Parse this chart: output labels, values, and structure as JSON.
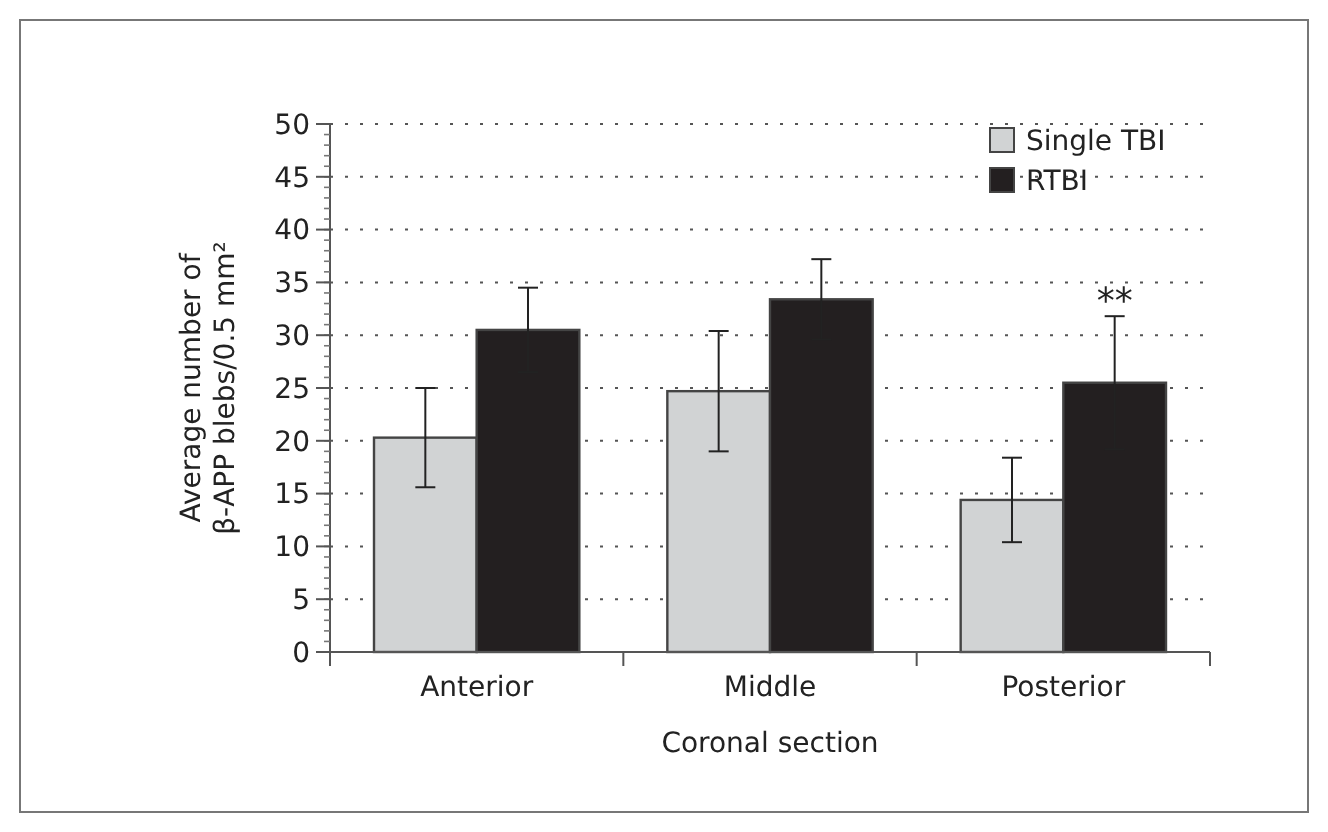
{
  "chart_data": {
    "type": "bar",
    "xlabel": "Coronal section",
    "ylabel": "Average number of β-APP blebs/0.5 mm²",
    "categories": [
      "Anterior",
      "Middle",
      "Posterior"
    ],
    "series": [
      {
        "name": "Single TBI",
        "color": "#d1d3d4",
        "values": [
          20.3,
          24.7,
          14.4
        ],
        "errors": [
          4.7,
          5.7,
          4
        ]
      },
      {
        "name": "RTBI",
        "color": "#231f20",
        "values": [
          30.5,
          33.4,
          25.5
        ],
        "errors": [
          4,
          3.8,
          6.3
        ]
      }
    ],
    "ylim": [
      0,
      50
    ],
    "yticks": [
      0,
      5,
      10,
      15,
      20,
      25,
      30,
      35,
      40,
      45,
      50
    ],
    "grid": "y",
    "legend": "top right",
    "annotations": [
      "**"
    ]
  }
}
